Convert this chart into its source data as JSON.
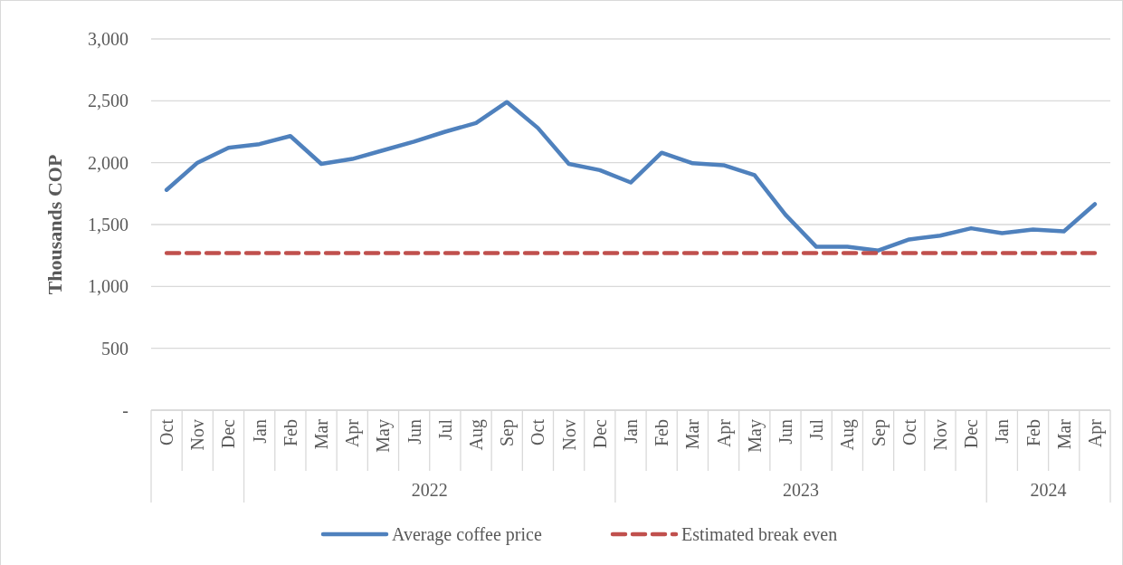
{
  "chart_data": {
    "type": "line",
    "ylabel": "Thousands COP",
    "categories": [
      "Oct",
      "Nov",
      "Dec",
      "Jan",
      "Feb",
      "Mar",
      "Apr",
      "May",
      "Jun",
      "Jul",
      "Aug",
      "Sep",
      "Oct",
      "Nov",
      "Dec",
      "Jan",
      "Feb",
      "Mar",
      "Apr",
      "May",
      "Jun",
      "Jul",
      "Aug",
      "Sep",
      "Oct",
      "Nov",
      "Dec",
      "Jan",
      "Feb",
      "Mar",
      "Apr"
    ],
    "series": [
      {
        "name": "Average coffee price",
        "color": "#4f81bd",
        "line_style": "solid",
        "values": [
          1780,
          2000,
          2120,
          2150,
          2215,
          1990,
          2030,
          2100,
          2170,
          2250,
          2320,
          2490,
          2280,
          1990,
          1940,
          1840,
          2080,
          1995,
          1980,
          1900,
          1580,
          1320,
          1320,
          1290,
          1380,
          1410,
          1470,
          1430,
          1460,
          1445,
          1665
        ]
      },
      {
        "name": "Estimated break even",
        "color": "#c0504d",
        "line_style": "dashed",
        "values": [
          1270,
          1270,
          1270,
          1270,
          1270,
          1270,
          1270,
          1270,
          1270,
          1270,
          1270,
          1270,
          1270,
          1270,
          1270,
          1270,
          1270,
          1270,
          1270,
          1270,
          1270,
          1270,
          1270,
          1270,
          1270,
          1270,
          1270,
          1270,
          1270,
          1270,
          1270
        ]
      }
    ],
    "ylim": [
      0,
      3000
    ],
    "yticks": [
      {
        "value": 0,
        "label": "-"
      },
      {
        "value": 500,
        "label": "500"
      },
      {
        "value": 1000,
        "label": "1,000"
      },
      {
        "value": 1500,
        "label": "1,500"
      },
      {
        "value": 2000,
        "label": "2,000"
      },
      {
        "value": 2500,
        "label": "2,500"
      },
      {
        "value": 3000,
        "label": "3,000"
      }
    ],
    "grid": "y",
    "legend": "bottom",
    "marker": "none",
    "annotations": [
      "2022",
      "2023",
      "2024"
    ]
  }
}
